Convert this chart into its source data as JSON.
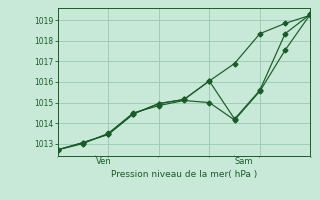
{
  "bg_color": "#c8e8d8",
  "grid_color": "#a0ccb8",
  "line_color": "#1a5c28",
  "ylabel": "Pression niveau de la mer( hPa )",
  "ylim": [
    1012.4,
    1019.6
  ],
  "yticks": [
    1013,
    1014,
    1015,
    1016,
    1017,
    1018,
    1019
  ],
  "xlim": [
    0,
    10
  ],
  "line1_x": [
    0,
    1,
    2,
    3,
    4,
    5,
    6,
    7,
    8,
    9,
    10
  ],
  "line1_y": [
    1012.7,
    1013.0,
    1013.5,
    1014.5,
    1014.85,
    1015.1,
    1015.0,
    1014.15,
    1015.55,
    1017.55,
    1019.3
  ],
  "line2_x": [
    0,
    1,
    2,
    3,
    4,
    5,
    6,
    7,
    8,
    9,
    10
  ],
  "line2_y": [
    1012.7,
    1013.05,
    1013.45,
    1014.45,
    1014.95,
    1015.15,
    1016.05,
    1014.2,
    1015.6,
    1018.35,
    1019.3
  ],
  "line3_x": [
    0,
    1,
    2,
    3,
    4,
    5,
    6,
    7,
    8,
    9,
    10
  ],
  "line3_y": [
    1012.7,
    1013.05,
    1013.45,
    1014.45,
    1014.95,
    1015.15,
    1016.05,
    1016.9,
    1018.35,
    1018.85,
    1019.25
  ],
  "ven_x": 1.5,
  "sam_x": 7.0,
  "markersize": 2.5
}
